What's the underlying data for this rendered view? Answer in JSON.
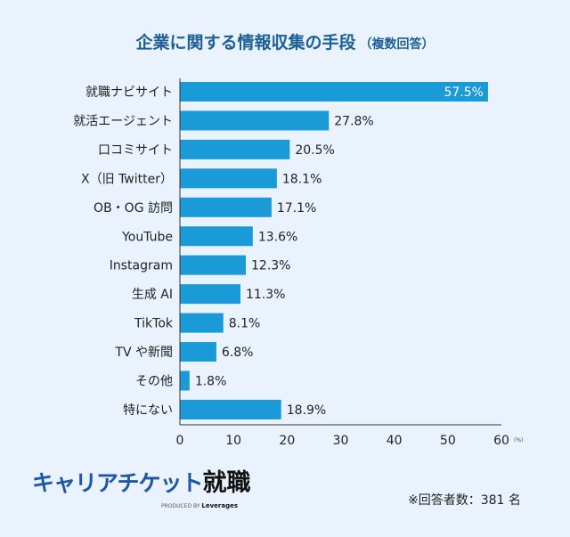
{
  "title": "企業に関する情報収集の手段",
  "subtitle": "（複数回答）",
  "chart_data": {
    "type": "bar",
    "orientation": "horizontal",
    "categories": [
      "就職ナビサイト",
      "就活エージェント",
      "口コミサイト",
      "X（旧 Twitter）",
      "OB・OG 訪問",
      "YouTube",
      "Instagram",
      "生成 AI",
      "TikTok",
      "TV や新聞",
      "その他",
      "特にない"
    ],
    "values": [
      57.5,
      27.8,
      20.5,
      18.1,
      17.1,
      13.6,
      12.3,
      11.3,
      8.1,
      6.8,
      1.8,
      18.9
    ],
    "data_labels": [
      "57.5%",
      "27.8%",
      "20.5%",
      "18.1%",
      "17.1%",
      "13.6%",
      "12.3%",
      "11.3%",
      "8.1%",
      "6.8%",
      "1.8%",
      "18.9%"
    ],
    "xlim": [
      0,
      60
    ],
    "xticks": [
      "0",
      "10",
      "20",
      "30",
      "40",
      "50",
      "60"
    ],
    "xunit": "(%)",
    "grid": false,
    "bar_color": "#1a9ad6"
  },
  "footer": {
    "logo_kana": "キャリアチケット",
    "logo_kanji": "就職",
    "logo_produced": "PRODUCED BY",
    "logo_brand": "Leverages",
    "note": "※回答者数：381 名"
  }
}
